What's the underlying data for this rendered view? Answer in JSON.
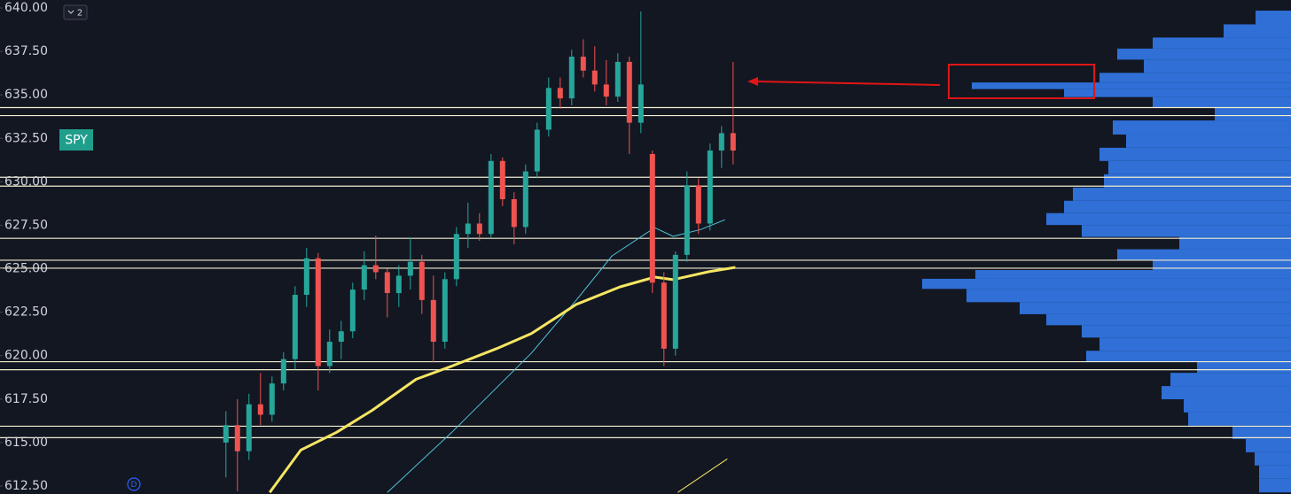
{
  "chart_data": {
    "type": "candlestick",
    "symbol": "SPY",
    "interval_badge": "2",
    "indicator_badge": "D",
    "ylim": [
      612.04,
      640.46
    ],
    "yticks": [
      {
        "value": 640,
        "label": "640.00"
      },
      {
        "value": 637.5,
        "label": "637.50"
      },
      {
        "value": 635,
        "label": "635.00"
      },
      {
        "value": 632.5,
        "label": "632.50"
      },
      {
        "value": 630,
        "label": "630.00"
      },
      {
        "value": 627.5,
        "label": "627.50"
      },
      {
        "value": 625,
        "label": "625.00"
      },
      {
        "value": 622.5,
        "label": "622.50"
      },
      {
        "value": 620,
        "label": "620.00"
      },
      {
        "value": 617.5,
        "label": "617.50"
      },
      {
        "value": 615,
        "label": "615.00"
      },
      {
        "value": 612.5,
        "label": "612.50"
      }
    ],
    "grid": false,
    "xlim": [
      -19.6,
      92.4
    ],
    "up_color": "#26a69a",
    "down_color": "#ef5350",
    "candles": {
      "open": [
        615.0,
        616.0,
        614.5,
        617.2,
        616.6,
        618.4,
        619.8,
        623.5,
        625.6,
        619.4,
        620.8,
        621.4,
        623.8,
        625.2,
        624.8,
        623.6,
        624.6,
        625.4,
        623.2,
        620.8,
        624.4,
        627.0,
        627.6,
        627.0,
        631.2,
        629.0,
        627.4,
        630.6,
        633.0,
        635.4,
        634.8,
        637.2,
        636.4,
        635.6,
        634.9,
        636.9,
        633.4,
        631.6,
        624.2,
        620.4,
        625.8,
        629.8,
        627.6,
        631.8,
        632.8
      ],
      "high": [
        616.8,
        617.5,
        617.8,
        619.0,
        618.8,
        620.2,
        624.0,
        626.2,
        625.9,
        621.5,
        622.0,
        624.2,
        626.0,
        626.9,
        625.0,
        625.2,
        626.8,
        625.8,
        624.6,
        624.8,
        627.4,
        628.8,
        628.2,
        631.6,
        631.4,
        629.4,
        631.0,
        633.4,
        636.0,
        636.0,
        637.6,
        638.2,
        637.8,
        637.0,
        637.4,
        637.2,
        639.8,
        631.8,
        624.8,
        626.0,
        630.6,
        630.2,
        632.2,
        633.2,
        636.9
      ],
      "low": [
        613.0,
        612.2,
        614.0,
        616.0,
        616.2,
        618.0,
        619.2,
        622.8,
        618.0,
        619.0,
        619.8,
        621.0,
        623.2,
        624.4,
        622.2,
        622.8,
        623.8,
        622.4,
        619.6,
        620.4,
        624.0,
        626.2,
        626.6,
        626.8,
        628.6,
        626.4,
        627.0,
        630.2,
        632.6,
        634.2,
        634.4,
        636.0,
        635.2,
        634.4,
        634.6,
        631.6,
        632.8,
        623.6,
        619.4,
        620.0,
        625.4,
        627.0,
        627.2,
        630.8,
        631.0
      ],
      "close": [
        616.0,
        614.5,
        617.2,
        616.6,
        618.4,
        619.8,
        623.5,
        625.6,
        619.4,
        620.8,
        621.4,
        623.8,
        625.2,
        624.8,
        623.6,
        624.6,
        625.4,
        623.2,
        620.8,
        624.4,
        627.0,
        627.6,
        627.0,
        631.2,
        629.0,
        627.4,
        630.6,
        633.0,
        635.4,
        634.8,
        637.2,
        636.4,
        635.6,
        634.9,
        636.9,
        633.4,
        635.6,
        624.2,
        620.4,
        625.8,
        629.8,
        627.6,
        631.8,
        632.8,
        631.8
      ]
    },
    "series": [
      {
        "color": "#4fc3d9",
        "width": 1,
        "x": [
          14.0,
          19.6,
          26.5,
          30.4,
          33.5,
          37.2,
          38.8,
          41.2,
          43.3
        ],
        "values": [
          612.13,
          615.59,
          620.15,
          623.2,
          625.74,
          627.36,
          626.86,
          627.26,
          627.82
        ]
      },
      {
        "color": "#f5e663",
        "width": 3,
        "x": [
          3.8,
          6.5,
          9.6,
          12.7,
          16.5,
          19.6,
          23.5,
          26.5,
          30.4,
          34.2,
          37.2,
          38.8,
          41.9,
          44.2
        ],
        "values": [
          612.13,
          614.57,
          615.59,
          616.86,
          618.64,
          619.4,
          620.41,
          621.27,
          622.95,
          623.96,
          624.52,
          624.37,
          624.83,
          625.08
        ]
      },
      {
        "color": "#f5e663",
        "width": 1,
        "x": [
          39.2,
          43.5
        ],
        "values": [
          612.13,
          614.06
        ]
      }
    ],
    "levels": {
      "color": "#f2edd0",
      "values": [
        634.27,
        633.81,
        630.26,
        629.75,
        626.75,
        625.49,
        625.03,
        619.65,
        619.19,
        615.94,
        615.28
      ]
    },
    "volume_profile": {
      "color": "#2f6fd6",
      "xlim": [
        0,
        420
      ],
      "prices": [
        639.44,
        638.68,
        637.92,
        637.41,
        636.65,
        635.89,
        635.54,
        635.13,
        634.62,
        633.96,
        633.1,
        632.34,
        631.58,
        630.82,
        630.05,
        629.29,
        628.53,
        627.87,
        627.16,
        626.5,
        625.74,
        625.23,
        624.62,
        624.22,
        623.46,
        622.69,
        622.08,
        621.42,
        620.66,
        619.9,
        619.39,
        618.63,
        617.87,
        617.11,
        616.35,
        615.59,
        614.82,
        614.06,
        613.3,
        612.54
      ],
      "values": [
        40,
        76,
        156,
        196,
        166,
        216,
        360,
        256,
        156,
        86,
        201,
        186,
        216,
        206,
        211,
        246,
        256,
        276,
        236,
        126,
        196,
        156,
        356,
        416,
        366,
        306,
        276,
        236,
        216,
        231,
        106,
        136,
        146,
        121,
        116,
        66,
        51,
        41,
        36,
        36
      ]
    }
  }
}
